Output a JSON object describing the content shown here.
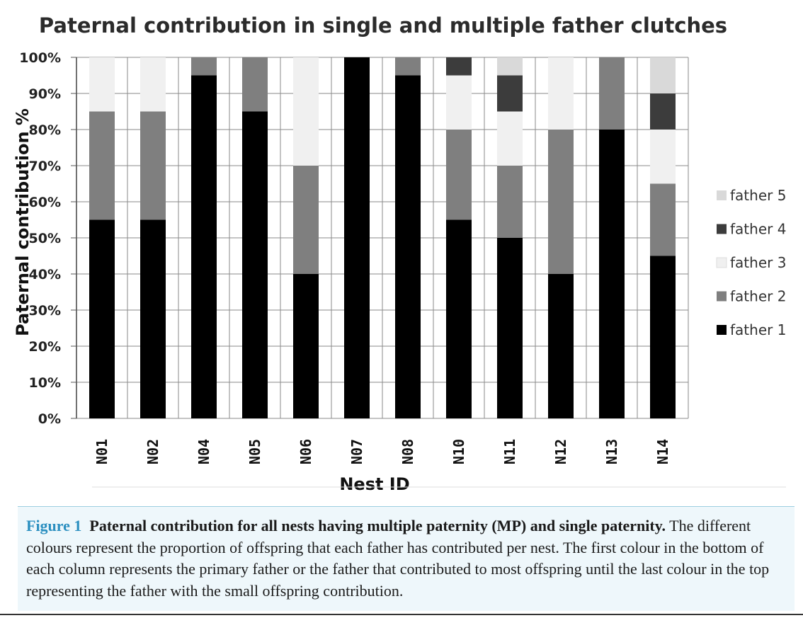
{
  "chart_data": {
    "type": "bar",
    "stacked": true,
    "title": "Paternal contribution in single and multiple father clutches",
    "xlabel": "Nest ID",
    "ylabel": "Paternal contribution %",
    "ylim": [
      0,
      100
    ],
    "y_ticks": [
      "0%",
      "10%",
      "20%",
      "30%",
      "40%",
      "50%",
      "60%",
      "70%",
      "80%",
      "90%",
      "100%"
    ],
    "grid": true,
    "legend_position": "right",
    "categories": [
      "N01",
      "N02",
      "N04",
      "N05",
      "N06",
      "N07",
      "N08",
      "N10",
      "N11",
      "N12",
      "N13",
      "N14"
    ],
    "series": [
      {
        "name": "father 1",
        "color": "#000000",
        "values": [
          55,
          55,
          95,
          85,
          40,
          100,
          95,
          55,
          50,
          40,
          80,
          45
        ]
      },
      {
        "name": "father 2",
        "color": "#7f7f7f",
        "values": [
          30,
          30,
          5,
          15,
          30,
          0,
          5,
          25,
          20,
          40,
          20,
          20
        ]
      },
      {
        "name": "father 3",
        "color": "#f0f0f0",
        "values": [
          15,
          15,
          0,
          0,
          30,
          0,
          0,
          15,
          15,
          20,
          0,
          15
        ]
      },
      {
        "name": "father 4",
        "color": "#3c3c3c",
        "values": [
          0,
          0,
          0,
          0,
          0,
          0,
          0,
          5,
          10,
          0,
          0,
          10
        ]
      },
      {
        "name": "father 5",
        "color": "#d9d9d9",
        "values": [
          0,
          0,
          0,
          0,
          0,
          0,
          0,
          0,
          5,
          0,
          0,
          10
        ]
      }
    ]
  },
  "caption": {
    "label": "Figure 1",
    "bold_text": "Paternal contribution for all nests having multiple paternity (MP) and single paternity.",
    "text": "The different colours represent the proportion of offspring that each father has contributed per nest. The first colour in the bottom of each column represents the primary father or the father that contributed to most offspring until the last colour in the top representing the father with the small offspring contribution."
  }
}
